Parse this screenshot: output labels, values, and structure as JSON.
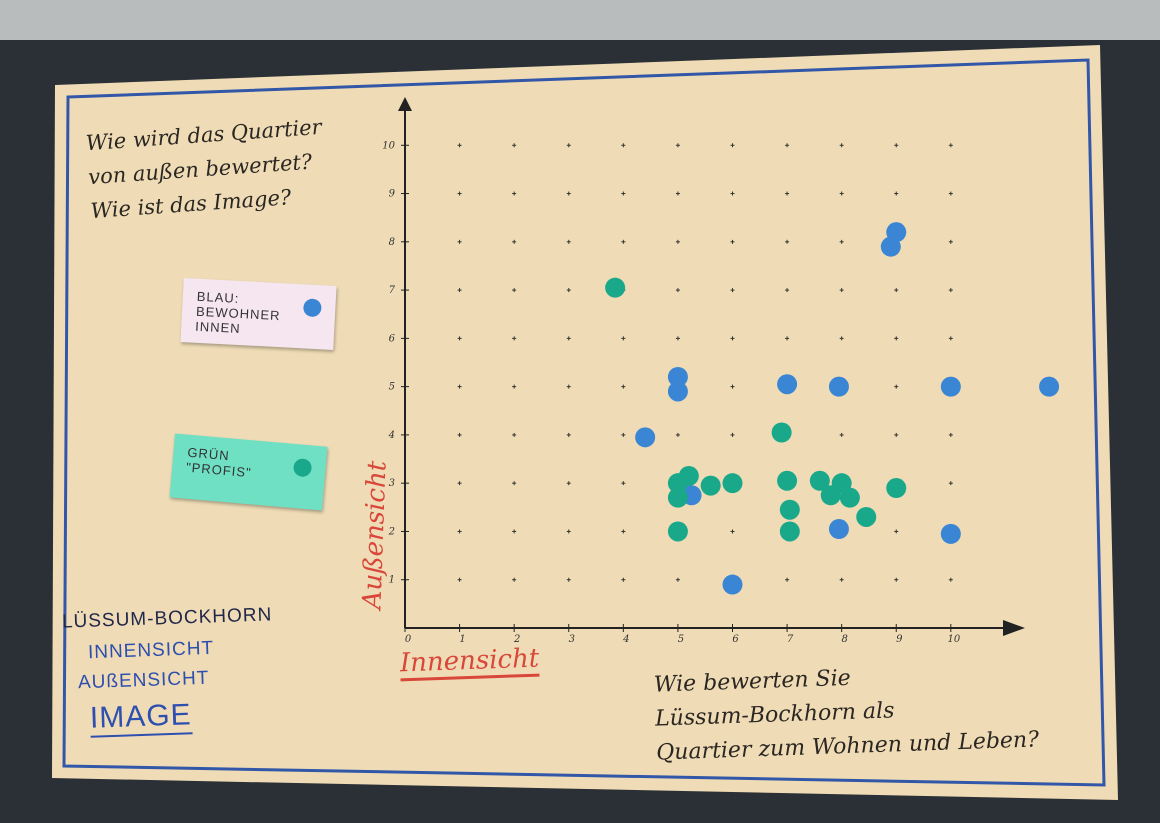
{
  "question_top": "Wie wird das Quartier\nvon außen bewertet?\nWie ist das Image?",
  "bottom_left": [
    "LÜSSUM-BOCKHORN",
    "INNENSICHT",
    "AUßENSICHT",
    "IMAGE"
  ],
  "question_bottom": "Wie bewerten Sie\nLüssum-Bockhorn als\nQuartier zum Wohnen und Leben?",
  "chart_data": {
    "type": "scatter",
    "x_label": "Innensicht",
    "y_label": "Außensicht",
    "xlim": [
      0,
      12
    ],
    "ylim": [
      0,
      11
    ],
    "xticks": [
      0,
      1,
      2,
      3,
      4,
      5,
      6,
      7,
      8,
      9,
      10
    ],
    "yticks": [
      1,
      2,
      3,
      4,
      5,
      6,
      7,
      8,
      9,
      10
    ],
    "grid": true,
    "series": [
      {
        "name": "BLAU:\nBEWOHNER INNEN",
        "color": "#3a86d4",
        "x": [
          9,
          8.9,
          5,
          5,
          7,
          7.95,
          10,
          11.8,
          4.4,
          5.25,
          7.95,
          10,
          6
        ],
        "values": [
          8.2,
          7.9,
          5.2,
          4.9,
          5.05,
          5,
          5,
          5,
          3.95,
          2.75,
          2.05,
          1.95,
          0.9
        ]
      },
      {
        "name": "GRÜN\n\"PROFIS\"",
        "color": "#1aa88a",
        "x": [
          3.85,
          6.9,
          5.2,
          5,
          5.6,
          6,
          5,
          7,
          7.6,
          8,
          7.8,
          8.15,
          7.05,
          9,
          8.45,
          5,
          7.05
        ],
        "values": [
          7.05,
          4.05,
          3.15,
          3,
          2.95,
          3,
          2.7,
          3.05,
          3.05,
          3,
          2.75,
          2.7,
          2.45,
          2.9,
          2.3,
          2,
          2
        ]
      }
    ]
  }
}
